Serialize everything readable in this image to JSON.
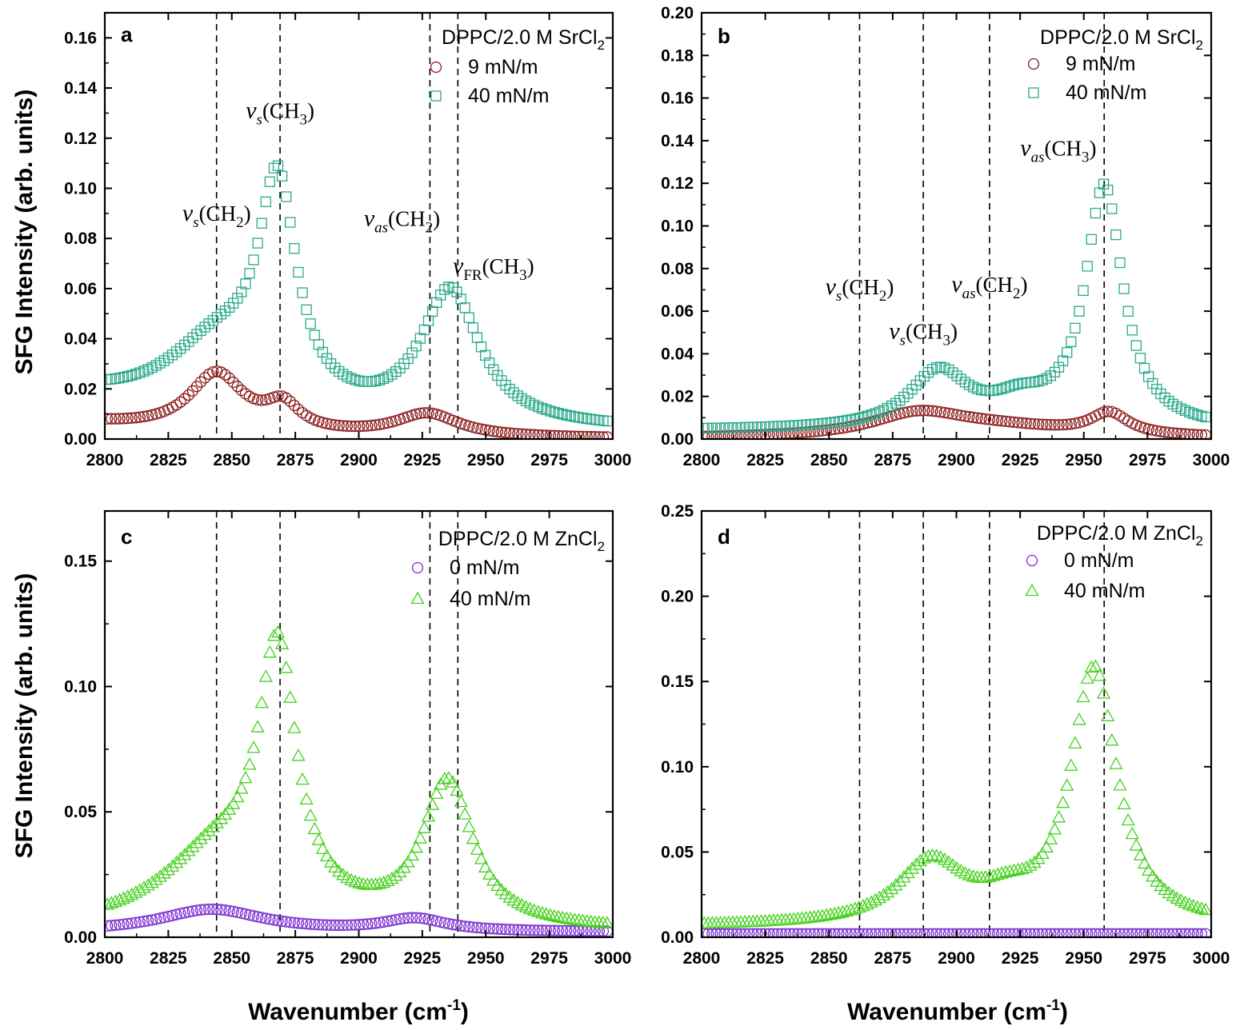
{
  "figure": {
    "ylabel": "SFG Intensity (arb. units)",
    "xlabel_left": "Wavenumber (cm-1)",
    "xlabel_right": "Wavenumber (cm-1)",
    "xlabel_parts": {
      "main": "Wavenumber (cm",
      "sup": "-1",
      "close": ")"
    }
  },
  "chart_data": [
    {
      "panel": "a",
      "type": "scatter",
      "legend_title": "DPPC/2.0 M SrCl2",
      "legend_title_parts": {
        "main": "DPPC/2.0 M SrCl",
        "sub": "2"
      },
      "xlim": [
        2800,
        3000
      ],
      "ylim": [
        0,
        0.17
      ],
      "xticks": [
        "2800",
        "2825",
        "2850",
        "2875",
        "2900",
        "2925",
        "2950",
        "2975",
        "3000"
      ],
      "yticks": [
        "0.00",
        "0.02",
        "0.04",
        "0.06",
        "0.08",
        "0.10",
        "0.12",
        "0.14",
        "0.16"
      ],
      "vlines": [
        2844,
        2869,
        2928,
        2939
      ],
      "annotations": [
        {
          "text": "νs(CH2)",
          "base": "ν",
          "sub1": "s",
          "paren": "(CH",
          "sub2": "2",
          "close": ")",
          "x": 2844,
          "y": 0.087
        },
        {
          "text": "νs(CH3)",
          "base": "ν",
          "sub1": "s",
          "paren": "(CH",
          "sub2": "3",
          "close": ")",
          "x": 2869,
          "y": 0.128
        },
        {
          "text": "νas(CH2)",
          "base": "ν",
          "sub1": "as",
          "paren": "(CH",
          "sub2": "2",
          "close": ")",
          "x": 2917,
          "y": 0.085
        },
        {
          "text": "νFR(CH3)",
          "base": "ν",
          "sub1": "FR",
          "paren": "(CH",
          "sub2": "3",
          "close": ")",
          "x": 2953,
          "y": 0.066
        }
      ],
      "series": [
        {
          "name": "9 mN/m",
          "marker": "circle",
          "color": "#8b1a1a",
          "peaks": [
            [
              0.006,
              2800,
              0
            ],
            [
              0.023,
              2844,
              13
            ],
            [
              0.01,
              2870,
              8
            ],
            [
              0.009,
              2927,
              15
            ]
          ],
          "baseline": 0.0
        },
        {
          "name": "40 mN/m",
          "marker": "square",
          "color": "#2aa98b",
          "peaks": [
            [
              0.012,
              2800,
              0
            ],
            [
              0.028,
              2845,
              25
            ],
            [
              0.085,
              2868,
              9
            ],
            [
              0.053,
              2936,
              14
            ]
          ],
          "baseline": 0.003
        }
      ]
    },
    {
      "panel": "b",
      "type": "scatter",
      "legend_title": "DPPC/2.0 M SrCl2",
      "legend_title_parts": {
        "main": "DPPC/2.0 M SrCl",
        "sub": "2"
      },
      "xlim": [
        2800,
        3000
      ],
      "ylim": [
        0,
        0.2
      ],
      "xticks": [
        "2800",
        "2825",
        "2850",
        "2875",
        "2900",
        "2925",
        "2950",
        "2975",
        "3000"
      ],
      "yticks": [
        "0.00",
        "0.02",
        "0.04",
        "0.06",
        "0.08",
        "0.10",
        "0.12",
        "0.14",
        "0.16",
        "0.18",
        "0.20"
      ],
      "vlines": [
        2862,
        2887,
        2913,
        2958
      ],
      "annotations": [
        {
          "text": "νs(CH2)",
          "base": "ν",
          "sub1": "s",
          "paren": "(CH",
          "sub2": "2",
          "close": ")",
          "x": 2862,
          "y": 0.068
        },
        {
          "text": "νs(CH3)",
          "base": "ν",
          "sub1": "s",
          "paren": "(CH",
          "sub2": "3",
          "close": ")",
          "x": 2887,
          "y": 0.047
        },
        {
          "text": "νas(CH2)",
          "base": "ν",
          "sub1": "as",
          "paren": "(CH",
          "sub2": "2",
          "close": ")",
          "x": 2913,
          "y": 0.069
        },
        {
          "text": "νas(CH3)",
          "base": "ν",
          "sub1": "as",
          "paren": "(CH",
          "sub2": "3",
          "close": ")",
          "x": 2940,
          "y": 0.133
        }
      ],
      "series": [
        {
          "name": "9 mN/m",
          "marker": "circle",
          "color": "#8b1a1a",
          "peaks": [
            [
              0.01,
              2885,
              22
            ],
            [
              0.01,
              2960,
              9
            ],
            [
              0.005,
              2915,
              40
            ]
          ],
          "baseline": 0.0
        },
        {
          "name": "40 mN/m",
          "marker": "square",
          "color": "#2aa98b",
          "peaks": [
            [
              0.026,
              2893,
              14
            ],
            [
              0.113,
              2958,
              9
            ],
            [
              0.01,
              2925,
              14
            ]
          ],
          "baseline": 0.004
        }
      ]
    },
    {
      "panel": "c",
      "type": "scatter",
      "legend_title": "DPPC/2.0 M ZnCl2",
      "legend_title_parts": {
        "main": "DPPC/2.0 M ZnCl",
        "sub": "2"
      },
      "xlim": [
        2800,
        3000
      ],
      "ylim": [
        0,
        0.17
      ],
      "xticks": [
        "2800",
        "2825",
        "2850",
        "2875",
        "2900",
        "2925",
        "2950",
        "2975",
        "3000"
      ],
      "yticks": [
        "0.00",
        "0.05",
        "0.10",
        "0.15"
      ],
      "vlines": [
        2844,
        2869,
        2928,
        2939
      ],
      "annotations": [],
      "series": [
        {
          "name": "0 mN/m",
          "marker": "circle",
          "color": "#7b2fd0",
          "peaks": [
            [
              0.009,
              2842,
              25
            ],
            [
              0.005,
              2922,
              15
            ]
          ],
          "baseline": 0.002
        },
        {
          "name": "40 mN/m",
          "marker": "triangle",
          "color": "#44d11c",
          "peaks": [
            [
              0.03,
              2845,
              28
            ],
            [
              0.1,
              2868,
              9
            ],
            [
              0.057,
              2935,
              12
            ]
          ],
          "baseline": 0.002
        }
      ]
    },
    {
      "panel": "d",
      "type": "scatter",
      "legend_title": "DPPC/2.0 M ZnCl2",
      "legend_title_parts": {
        "main": "DPPC/2.0 M ZnCl",
        "sub": "2"
      },
      "xlim": [
        2800,
        3000
      ],
      "ylim": [
        0,
        0.25
      ],
      "xticks": [
        "2800",
        "2825",
        "2850",
        "2875",
        "2900",
        "2925",
        "2950",
        "2975",
        "3000"
      ],
      "yticks": [
        "0.00",
        "0.05",
        "0.10",
        "0.15",
        "0.20",
        "0.25"
      ],
      "vlines": [
        2862,
        2887,
        2913,
        2958
      ],
      "annotations": [],
      "series": [
        {
          "name": "0 mN/m",
          "marker": "circle",
          "color": "#7b2fd0",
          "peaks": [],
          "baseline": 0.002
        },
        {
          "name": "40 mN/m",
          "marker": "triangle",
          "color": "#44d11c",
          "peaks": [
            [
              0.036,
              2890,
              16
            ],
            [
              0.15,
              2954,
              11
            ],
            [
              0.01,
              2920,
              12
            ]
          ],
          "baseline": 0.006
        }
      ]
    }
  ]
}
